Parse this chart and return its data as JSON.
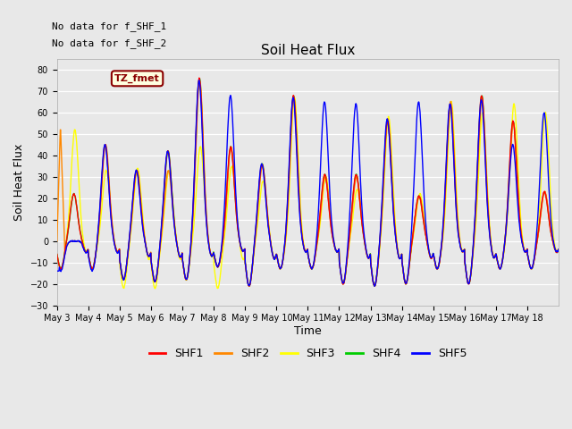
{
  "title": "Soil Heat Flux",
  "ylabel": "Soil Heat Flux",
  "xlabel": "Time",
  "ylim": [
    -30,
    85
  ],
  "yticks": [
    -30,
    -20,
    -10,
    0,
    10,
    20,
    30,
    40,
    50,
    60,
    70,
    80
  ],
  "annotations": [
    "No data for f_SHF_1",
    "No data for f_SHF_2"
  ],
  "legend_label": "TZ_fmet",
  "series_colors": {
    "SHF1": "#ff0000",
    "SHF2": "#ff8800",
    "SHF3": "#ffff00",
    "SHF4": "#00cc00",
    "SHF5": "#0000ff"
  },
  "bg_color": "#e8e8e8",
  "xtick_labels": [
    "May 3",
    "May 4",
    "May 5",
    "May 6",
    "May 7",
    "May 8",
    "May 9",
    "May 10",
    "May 11",
    "May 12",
    "May 13",
    "May 14",
    "May 15",
    "May 16",
    "May 17",
    "May 18"
  ],
  "day_peaks": {
    "SHF1": [
      22,
      45,
      33,
      42,
      76,
      44,
      36,
      68,
      31,
      31,
      56,
      21,
      64,
      68,
      56,
      23
    ],
    "SHF2": [
      0,
      45,
      33,
      33,
      75,
      44,
      35,
      67,
      30,
      30,
      57,
      21,
      65,
      66,
      55,
      23
    ],
    "SHF3": [
      52,
      33,
      34,
      33,
      44,
      35,
      28,
      67,
      30,
      24,
      58,
      22,
      65,
      60,
      64,
      60
    ],
    "SHF4": [
      22,
      45,
      33,
      42,
      76,
      44,
      36,
      68,
      31,
      31,
      56,
      21,
      64,
      68,
      56,
      23
    ],
    "SHF5": [
      0,
      45,
      33,
      42,
      75,
      68,
      36,
      67,
      65,
      64,
      57,
      65,
      64,
      66,
      45,
      60
    ]
  },
  "day_troughs": {
    "SHF1": [
      -13,
      -13,
      -18,
      -19,
      -18,
      -12,
      -21,
      -13,
      -13,
      -20,
      -21,
      -20,
      -13,
      -20,
      -13,
      -13
    ],
    "SHF2": [
      -13,
      -13,
      -18,
      -19,
      -18,
      -12,
      -21,
      -13,
      -13,
      -20,
      -21,
      -20,
      -13,
      -20,
      -13,
      -13
    ],
    "SHF3": [
      -13,
      -13,
      -22,
      -22,
      -18,
      -22,
      -21,
      -13,
      -13,
      -20,
      -21,
      -20,
      -13,
      -20,
      -13,
      -13
    ],
    "SHF4": [
      -13,
      -13,
      -18,
      -19,
      -18,
      -12,
      -21,
      -13,
      -13,
      -20,
      -21,
      -20,
      -13,
      -20,
      -13,
      -13
    ],
    "SHF5": [
      -14,
      -14,
      -18,
      -19,
      -18,
      -12,
      -21,
      -13,
      -13,
      -20,
      -21,
      -20,
      -13,
      -20,
      -13,
      -13
    ]
  },
  "phase_offsets": {
    "SHF1": 0.0,
    "SHF2": 0.15,
    "SHF3": 0.4,
    "SHF4": 0.05,
    "SHF5": -0.1
  }
}
